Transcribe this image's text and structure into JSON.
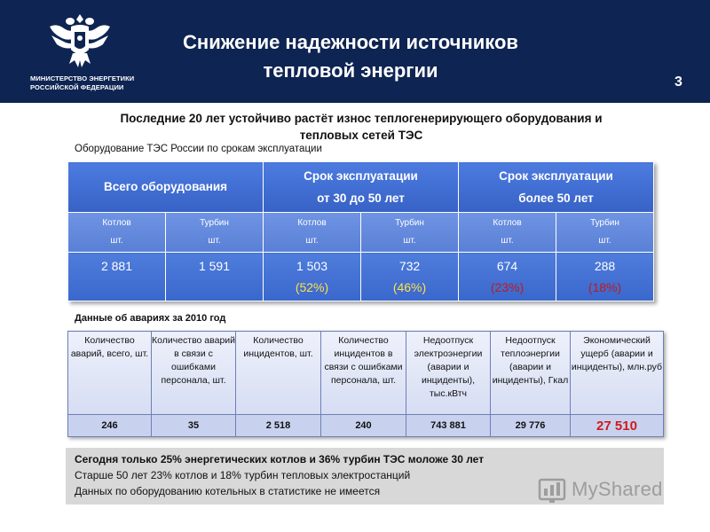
{
  "header": {
    "ministry_line1": "МИНИСТЕРСТВО ЭНЕРГЕТИКИ",
    "ministry_line2": "РОССИЙСКОЙ ФЕДЕРАЦИИ",
    "title_line1": "Снижение надежности источников",
    "title_line2": "тепловой энергии",
    "slide_number": "3",
    "emblem_icon": "double-headed-eagle-icon",
    "background": "#0e2452"
  },
  "subtitle_line1": "Последние 20 лет устойчиво растёт износ теплогенерирующего оборудования и",
  "subtitle_line2": "тепловых сетей ТЭС",
  "equipment": {
    "caption": "Оборудование ТЭС России по срокам эксплуатации",
    "headers": [
      {
        "lines": [
          "Всего оборудования"
        ]
      },
      {
        "lines": [
          "Срок эксплуатации",
          "от 30 до 50 лет"
        ]
      },
      {
        "lines": [
          "Срок эксплуатации",
          "более 50 лет"
        ]
      }
    ],
    "subheaders": [
      {
        "line1": "Котлов",
        "line2": "шт."
      },
      {
        "line1": "Турбин",
        "line2": "шт."
      },
      {
        "line1": "Котлов",
        "line2": "шт."
      },
      {
        "line1": "Турбин",
        "line2": "шт."
      },
      {
        "line1": "Котлов",
        "line2": "шт."
      },
      {
        "line1": "Турбин",
        "line2": "шт."
      }
    ],
    "values": [
      {
        "value": "2 881",
        "pct": ""
      },
      {
        "value": "1 591",
        "pct": ""
      },
      {
        "value": "1 503",
        "pct": "(52%)"
      },
      {
        "value": "732",
        "pct": "(46%)"
      },
      {
        "value": "674",
        "pct": "(23%)"
      },
      {
        "value": "288",
        "pct": "(18%)"
      }
    ],
    "colors": {
      "header": "#3d69cc",
      "pct_30_50": "#ffe04a",
      "pct_50_plus": "#c11a1a"
    }
  },
  "accidents": {
    "caption": "Данные об авариях за 2010 год",
    "headers": [
      "Количество аварий, всего, шт.",
      "Количество аварий в связи с ошибками персонала, шт.",
      "Количество инцидентов, шт.",
      "Количество инцидентов в связи с ошибками персонала, шт.",
      "Недоотпуск электроэнергии (аварии и инциденты), тыс.кВтч",
      "Недоотпуск теплоэнергии (аварии и инциденты), Гкал",
      "Экономический ущерб (аварии и инциденты), млн.руб"
    ],
    "values": [
      "246",
      "35",
      "2 518",
      "240",
      "743 881",
      "29 776",
      "27 510"
    ],
    "highlight_color": "#d11a1a"
  },
  "bottom": {
    "line1": "Сегодня только 25% энергетических котлов и 36% турбин ТЭС моложе 30 лет",
    "line2": "Старше 50 лет 23% котлов и 18% турбин тепловых электростанций",
    "line3": "Данных по оборудованию котельных в статистике не имеется"
  },
  "watermark": {
    "text": "MyShared",
    "icon": "bar-chart-logo-icon"
  }
}
